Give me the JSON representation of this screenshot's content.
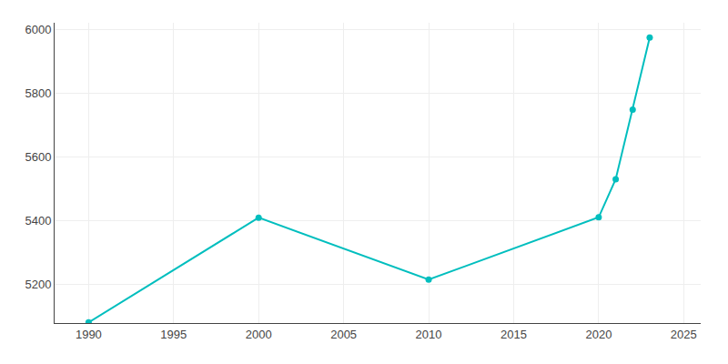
{
  "chart_data": {
    "type": "line",
    "x": [
      1990,
      2000,
      2010,
      2020,
      2021,
      2022,
      2023
    ],
    "values": [
      5082,
      5410,
      5216,
      5411,
      5530,
      5748,
      5974
    ],
    "color": "#00BEBE",
    "marker": "circle",
    "line_style": "solid",
    "xlim": [
      1988,
      2026
    ],
    "ylim": [
      5080,
      6020
    ],
    "xticks": [
      1990,
      1995,
      2000,
      2005,
      2010,
      2015,
      2020,
      2025
    ],
    "yticks": [
      5200,
      5400,
      5600,
      5800,
      6000
    ],
    "grid": true
  }
}
